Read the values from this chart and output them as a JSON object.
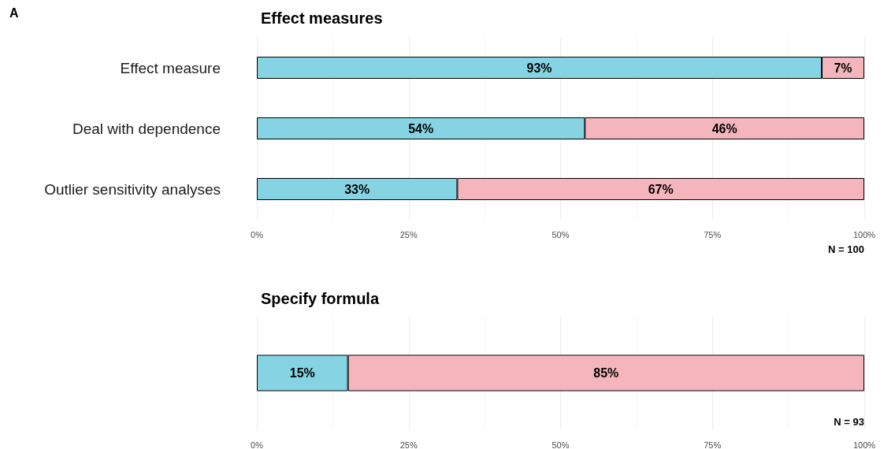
{
  "chart_data": [
    {
      "type": "bar",
      "title": "Effect measures",
      "orientation": "horizontal",
      "stacked": true,
      "categories": [
        "Effect measure",
        "Deal with dependence",
        "Outlier sensitivity analyses"
      ],
      "series": [
        {
          "color": "#86d4e3",
          "values": [
            93,
            54,
            33
          ],
          "value_labels": [
            "93%",
            "54%",
            "33%"
          ]
        },
        {
          "color": "#f5b5bc",
          "values": [
            7,
            46,
            67
          ],
          "value_labels": [
            "7%",
            "46%",
            "67%"
          ]
        }
      ],
      "xlim": [
        0,
        100
      ],
      "xticks": [
        {
          "value": 0,
          "label": "0%"
        },
        {
          "value": 25,
          "label": "25%"
        },
        {
          "value": 50,
          "label": "50%"
        },
        {
          "value": 75,
          "label": "75%"
        },
        {
          "value": 100,
          "label": "100%"
        }
      ],
      "grid": "x",
      "annotations": [
        "A",
        "N = 100"
      ]
    },
    {
      "type": "bar",
      "title": "Specify formula",
      "orientation": "horizontal",
      "stacked": true,
      "categories": [
        null
      ],
      "series": [
        {
          "color": "#86d4e3",
          "values": [
            15
          ],
          "value_labels": [
            "15%"
          ]
        },
        {
          "color": "#f5b5bc",
          "values": [
            85
          ],
          "value_labels": [
            "85%"
          ]
        }
      ],
      "xlim": [
        0,
        100
      ],
      "xticks": [
        {
          "value": 0,
          "label": "0%"
        },
        {
          "value": 25,
          "label": "25%"
        },
        {
          "value": 50,
          "label": "50%"
        },
        {
          "value": 75,
          "label": "75%"
        },
        {
          "value": 100,
          "label": "100%"
        }
      ],
      "grid": "x",
      "annotations": [
        "N = 93"
      ]
    }
  ]
}
